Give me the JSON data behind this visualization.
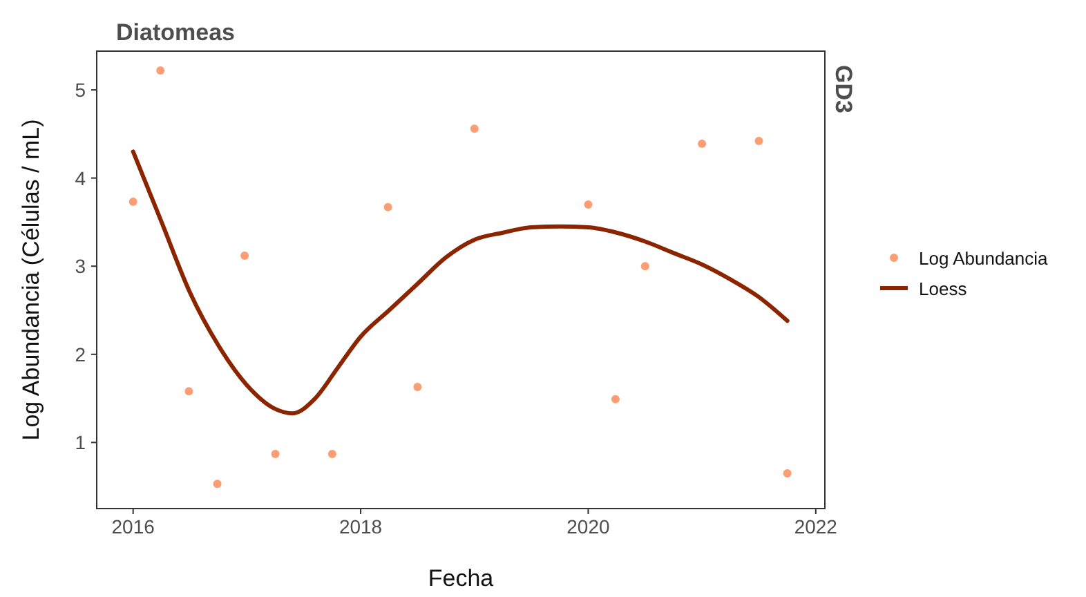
{
  "chart_data": {
    "type": "scatter",
    "title": "Diatomeas",
    "xlabel": "Fecha",
    "ylabel": "Log Abundancia (Células / mL)",
    "annotations": [
      "GD3"
    ],
    "xlim": [
      2015.68,
      2022.08
    ],
    "ylim": [
      0.25,
      5.44
    ],
    "xticks": [
      2016,
      2018,
      2020,
      2022
    ],
    "yticks": [
      1,
      2,
      3,
      4,
      5
    ],
    "grid": false,
    "legend": "right",
    "series": [
      {
        "name": "Log Abundancia",
        "marker": "circle",
        "color": "#fc9d73",
        "x": [
          2016.0,
          2016.24,
          2016.49,
          2016.74,
          2016.98,
          2017.25,
          2017.75,
          2018.24,
          2018.5,
          2019.0,
          2020.0,
          2020.24,
          2020.5,
          2021.0,
          2021.5,
          2021.75
        ],
        "values": [
          3.73,
          5.22,
          1.58,
          0.53,
          3.12,
          0.87,
          0.87,
          3.67,
          1.63,
          4.56,
          3.7,
          1.49,
          3.0,
          4.39,
          4.42,
          0.65
        ]
      },
      {
        "name": "Loess",
        "type": "line",
        "marker": "none",
        "color": "#8b2500",
        "x": [
          2016.0,
          2016.25,
          2016.5,
          2016.75,
          2017.0,
          2017.25,
          2017.4,
          2017.6,
          2017.8,
          2018.0,
          2018.25,
          2018.5,
          2018.75,
          2019.0,
          2019.25,
          2019.5,
          2019.75,
          2020.0,
          2020.25,
          2020.5,
          2020.75,
          2021.0,
          2021.25,
          2021.5,
          2021.75
        ],
        "values": [
          4.3,
          3.5,
          2.7,
          2.1,
          1.65,
          1.38,
          1.33,
          1.5,
          1.85,
          2.2,
          2.5,
          2.8,
          3.1,
          3.3,
          3.38,
          3.44,
          3.45,
          3.44,
          3.38,
          3.28,
          3.15,
          3.02,
          2.85,
          2.65,
          2.38
        ]
      }
    ]
  }
}
